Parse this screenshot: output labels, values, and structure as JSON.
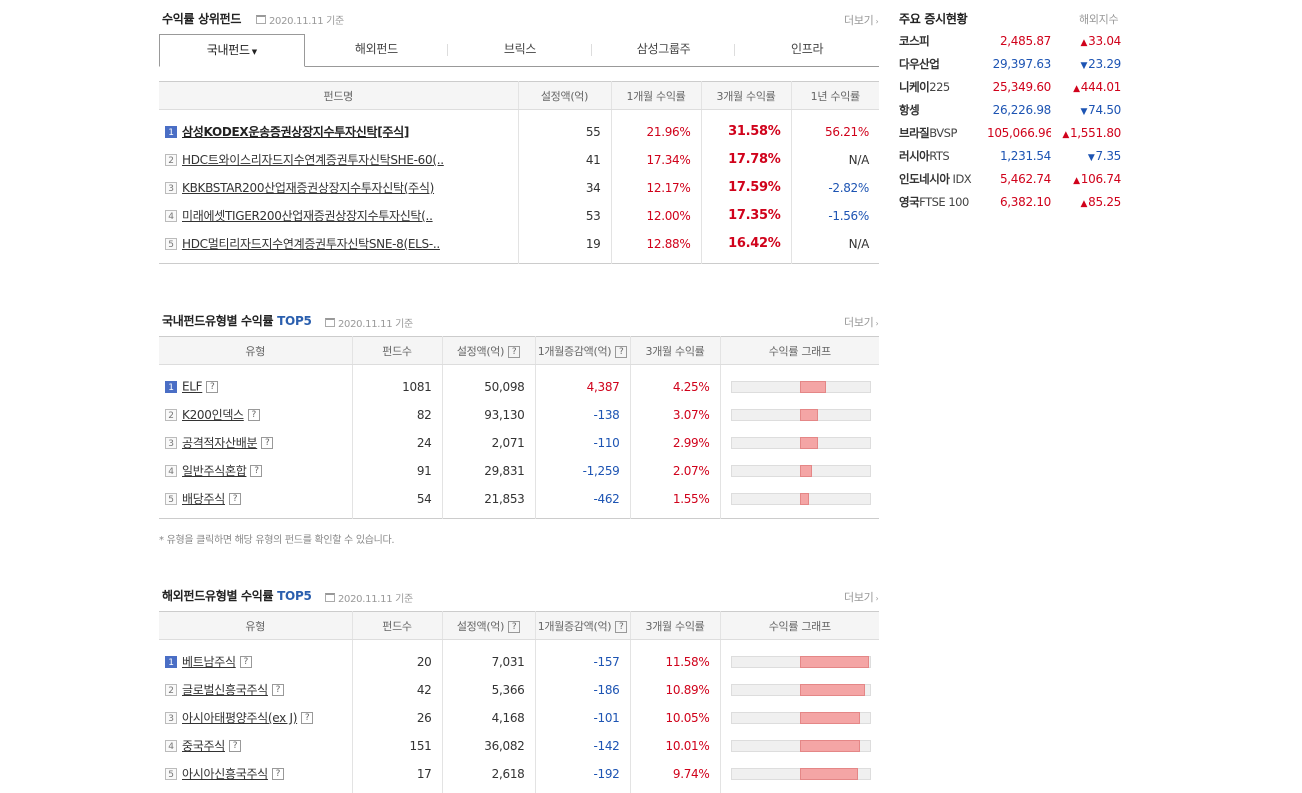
{
  "top_funds": {
    "title": "수익률 상위펀드",
    "date": "2020.11.11 기준",
    "more": "더보기",
    "tabs": [
      "국내펀드",
      "해외펀드",
      "브릭스",
      "삼성그룹주",
      "인프라"
    ],
    "headers": [
      "펀드명",
      "설정액(억)",
      "1개월 수익률",
      "3개월 수익률",
      "1년 수익률"
    ],
    "rows": [
      {
        "rank": "1",
        "name": "삼성KODEX운송증권상장지수투자신탁[주식]",
        "amount": "55",
        "m1": "21.96%",
        "m3": "31.58%",
        "y1": "56.21%"
      },
      {
        "rank": "2",
        "name": "HDC트와이스리자드지수연계증권투자신탁SHE-60(..",
        "amount": "41",
        "m1": "17.34%",
        "m3": "17.78%",
        "y1": "N/A"
      },
      {
        "rank": "3",
        "name": "KBKBSTAR200산업재증권상장지수투자신탁(주식)",
        "amount": "34",
        "m1": "12.17%",
        "m3": "17.59%",
        "y1": "-2.82%"
      },
      {
        "rank": "4",
        "name": "미래에셋TIGER200산업재증권상장지수투자신탁(..",
        "amount": "53",
        "m1": "12.00%",
        "m3": "17.35%",
        "y1": "-1.56%"
      },
      {
        "rank": "5",
        "name": "HDC멀티리자드지수연계증권투자신탁SNE-8(ELS-..",
        "amount": "19",
        "m1": "12.88%",
        "m3": "16.42%",
        "y1": "N/A"
      }
    ]
  },
  "domestic_type": {
    "title": "국내펀드유형별 수익률",
    "title_accent": "TOP5",
    "date": "2020.11.11 기준",
    "more": "더보기",
    "headers": [
      "유형",
      "펀드수",
      "설정액(억)",
      "1개월증감액(억)",
      "3개월 수익률",
      "수익률 그래프"
    ],
    "help": "?",
    "rows": [
      {
        "rank": "1",
        "name": "ELF",
        "count": "1081",
        "amount": "50,098",
        "delta": "4,387",
        "m3": "4.25%",
        "bar_pct": 4.25
      },
      {
        "rank": "2",
        "name": "K200인덱스",
        "count": "82",
        "amount": "93,130",
        "delta": "-138",
        "m3": "3.07%",
        "bar_pct": 3.07
      },
      {
        "rank": "3",
        "name": "공격적자산배분",
        "count": "24",
        "amount": "2,071",
        "delta": "-110",
        "m3": "2.99%",
        "bar_pct": 2.99
      },
      {
        "rank": "4",
        "name": "일반주식혼합",
        "count": "91",
        "amount": "29,831",
        "delta": "-1,259",
        "m3": "2.07%",
        "bar_pct": 2.07
      },
      {
        "rank": "5",
        "name": "배당주식",
        "count": "54",
        "amount": "21,853",
        "delta": "-462",
        "m3": "1.55%",
        "bar_pct": 1.55
      }
    ],
    "note": "* 유형을 클릭하면 해당 유형의 펀드를 확인할 수 있습니다."
  },
  "overseas_type": {
    "title": "해외펀드유형별 수익률",
    "title_accent": "TOP5",
    "date": "2020.11.11 기준",
    "more": "더보기",
    "headers": [
      "유형",
      "펀드수",
      "설정액(억)",
      "1개월증감액(억)",
      "3개월 수익률",
      "수익률 그래프"
    ],
    "help": "?",
    "rows": [
      {
        "rank": "1",
        "name": "베트남주식",
        "count": "20",
        "amount": "7,031",
        "delta": "-157",
        "m3": "11.58%",
        "bar_pct": 11.58
      },
      {
        "rank": "2",
        "name": "글로벌신흥국주식",
        "count": "42",
        "amount": "5,366",
        "delta": "-186",
        "m3": "10.89%",
        "bar_pct": 10.89
      },
      {
        "rank": "3",
        "name": "아시아태평양주식(ex J)",
        "count": "26",
        "amount": "4,168",
        "delta": "-101",
        "m3": "10.05%",
        "bar_pct": 10.05
      },
      {
        "rank": "4",
        "name": "중국주식",
        "count": "151",
        "amount": "36,082",
        "delta": "-142",
        "m3": "10.01%",
        "bar_pct": 10.01
      },
      {
        "rank": "5",
        "name": "아시아신흥국주식",
        "count": "17",
        "amount": "2,618",
        "delta": "-192",
        "m3": "9.74%",
        "bar_pct": 9.74
      }
    ]
  },
  "market": {
    "title": "주요 증시현황",
    "sub": "해외지수",
    "rows": [
      {
        "name": "코스피",
        "suffix": "",
        "value": "2,485.87",
        "dir": "up",
        "change": "33.04"
      },
      {
        "name": "다우산업",
        "suffix": "",
        "value": "29,397.63",
        "dir": "down",
        "change": "23.29"
      },
      {
        "name": "니케이",
        "suffix": "225",
        "value": "25,349.60",
        "dir": "up",
        "change": "444.01"
      },
      {
        "name": "항셍",
        "suffix": "",
        "value": "26,226.98",
        "dir": "down",
        "change": "74.50"
      },
      {
        "name": "브라질",
        "suffix": "BVSP",
        "value": "105,066.96",
        "dir": "up",
        "change": "1,551.80"
      },
      {
        "name": "러시아",
        "suffix": "RTS",
        "value": "1,231.54",
        "dir": "down",
        "change": "7.35"
      },
      {
        "name": "인도네시아",
        "suffix": " IDX",
        "value": "5,462.74",
        "dir": "up",
        "change": "106.74"
      },
      {
        "name": "영국",
        "suffix": "FTSE 100",
        "value": "6,382.10",
        "dir": "up",
        "change": "85.25"
      }
    ]
  },
  "colors": {
    "up": "#d0021b",
    "down": "#1d54b3",
    "accent": "#2b5fae",
    "bar": "#f4a5a5"
  }
}
